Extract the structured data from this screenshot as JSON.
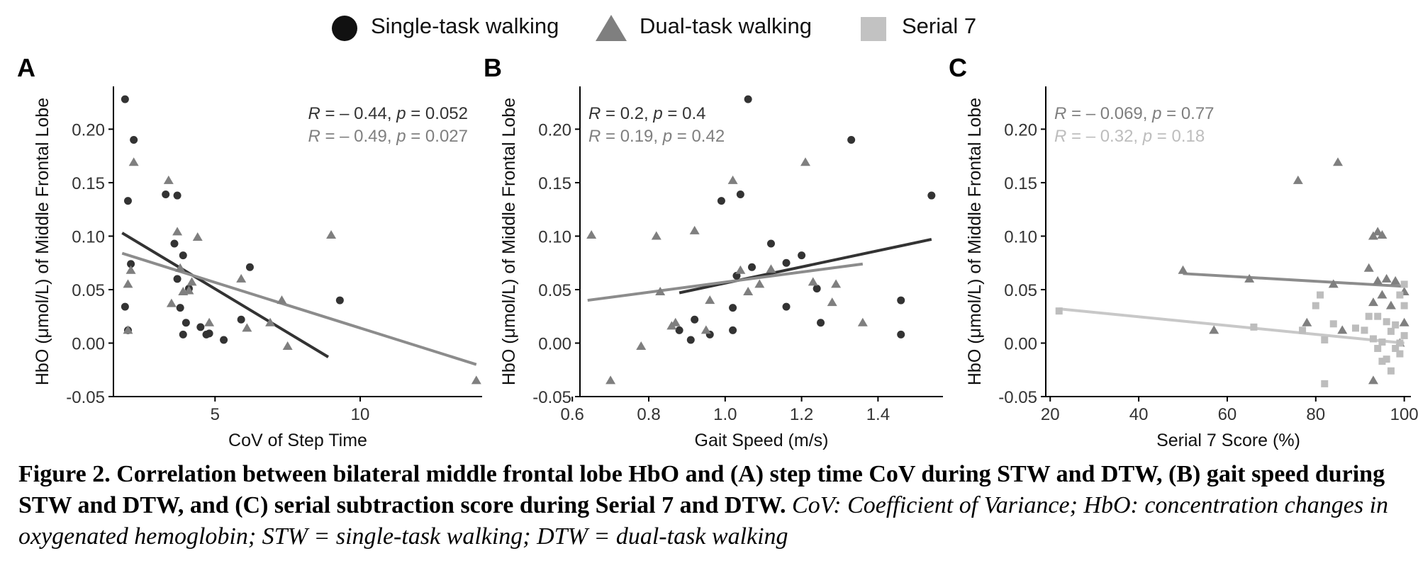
{
  "legend": {
    "single": "Single-task walking",
    "dual": "Dual-task walking",
    "serial": "Serial 7"
  },
  "colors": {
    "single": "#333333",
    "dual": "#7f7f7f",
    "serial": "#bdbdbd",
    "line_single": "#333333",
    "line_dual": "#8c8c8c",
    "line_serial": "#c8c8c8"
  },
  "caption": {
    "bold": "Figure 2. Correlation between bilateral middle frontal lobe HbO and (A) step time CoV during STW and DTW, (B) gait speed during STW and DTW, and (C) serial subtraction score during Serial 7 and DTW.",
    "italic": "CoV: Coefficient of Variance; HbO: concentration changes in oxygenated hemoglobin; STW = single-task walking; DTW = dual-task walking"
  },
  "chart_data": [
    {
      "panel": "A",
      "type": "scatter",
      "xlabel": "CoV of Step Time",
      "ylabel": "HbO (μmol/L) of Middle Frontal Lobe",
      "xlim": [
        1.5,
        14.2
      ],
      "ylim": [
        -0.05,
        0.24
      ],
      "xticks": [
        5,
        10
      ],
      "yticks": [
        -0.05,
        0.0,
        0.05,
        0.1,
        0.15,
        0.2
      ],
      "stats": [
        {
          "series": "single",
          "r_label": "R",
          "r_text": " = – 0.44, ",
          "p_label": "p",
          "p_text": " = 0.052"
        },
        {
          "series": "dual",
          "r_label": "R",
          "r_text": " = – 0.49, ",
          "p_label": "p",
          "p_text": " = 0.027"
        }
      ],
      "series": [
        {
          "name": "single",
          "marker": "circle",
          "points": [
            [
              1.9,
              0.228
            ],
            [
              2.0,
              0.133
            ],
            [
              2.2,
              0.19
            ],
            [
              2.1,
              0.074
            ],
            [
              1.9,
              0.034
            ],
            [
              2.0,
              0.012
            ],
            [
              3.3,
              0.139
            ],
            [
              3.7,
              0.138
            ],
            [
              3.6,
              0.093
            ],
            [
              3.9,
              0.082
            ],
            [
              3.7,
              0.06
            ],
            [
              4.1,
              0.051
            ],
            [
              3.8,
              0.033
            ],
            [
              4.0,
              0.019
            ],
            [
              3.9,
              0.008
            ],
            [
              4.5,
              0.015
            ],
            [
              4.8,
              0.009
            ],
            [
              4.7,
              0.008
            ],
            [
              5.3,
              0.003
            ],
            [
              5.9,
              0.022
            ],
            [
              6.2,
              0.071
            ],
            [
              9.3,
              0.04
            ]
          ],
          "fit": {
            "x": [
              1.8,
              8.9
            ],
            "y": [
              0.103,
              -0.013
            ]
          }
        },
        {
          "name": "dual",
          "marker": "triangle",
          "points": [
            [
              2.2,
              0.169
            ],
            [
              2.0,
              0.055
            ],
            [
              2.1,
              0.068
            ],
            [
              2.0,
              0.012
            ],
            [
              3.4,
              0.152
            ],
            [
              3.7,
              0.104
            ],
            [
              4.4,
              0.099
            ],
            [
              3.8,
              0.07
            ],
            [
              4.2,
              0.057
            ],
            [
              3.9,
              0.048
            ],
            [
              4.1,
              0.049
            ],
            [
              3.5,
              0.037
            ],
            [
              4.8,
              0.019
            ],
            [
              5.9,
              0.06
            ],
            [
              6.1,
              0.014
            ],
            [
              6.9,
              0.019
            ],
            [
              7.3,
              0.04
            ],
            [
              7.5,
              -0.003
            ],
            [
              9.0,
              0.101
            ],
            [
              14.0,
              -0.035
            ]
          ],
          "fit": {
            "x": [
              1.8,
              14.0
            ],
            "y": [
              0.084,
              -0.02
            ]
          }
        }
      ]
    },
    {
      "panel": "B",
      "type": "scatter",
      "xlabel": "Gait Speed (m/s)",
      "ylabel": "HbO (μmol/L) of Middle Frontal Lobe",
      "xlim": [
        0.62,
        1.57
      ],
      "ylim": [
        -0.05,
        0.24
      ],
      "xticks": [
        0.6,
        0.8,
        1.0,
        1.2,
        1.4
      ],
      "yticks": [
        -0.05,
        0.0,
        0.05,
        0.1,
        0.15,
        0.2
      ],
      "stats": [
        {
          "series": "single",
          "r_label": "R",
          "r_text": " = 0.2, ",
          "p_label": "p",
          "p_text": " = 0.4"
        },
        {
          "series": "dual",
          "r_label": "R",
          "r_text": " = 0.19, ",
          "p_label": "p",
          "p_text": " = 0.42"
        }
      ],
      "series": [
        {
          "name": "single",
          "marker": "circle",
          "points": [
            [
              1.06,
              0.228
            ],
            [
              1.33,
              0.19
            ],
            [
              0.99,
              0.133
            ],
            [
              1.04,
              0.139
            ],
            [
              1.54,
              0.138
            ],
            [
              1.12,
              0.093
            ],
            [
              1.2,
              0.082
            ],
            [
              1.16,
              0.075
            ],
            [
              1.07,
              0.071
            ],
            [
              1.03,
              0.063
            ],
            [
              1.24,
              0.051
            ],
            [
              1.46,
              0.04
            ],
            [
              1.02,
              0.033
            ],
            [
              1.16,
              0.034
            ],
            [
              0.92,
              0.022
            ],
            [
              1.25,
              0.019
            ],
            [
              0.88,
              0.012
            ],
            [
              0.96,
              0.008
            ],
            [
              0.91,
              0.003
            ],
            [
              1.02,
              0.012
            ],
            [
              1.46,
              0.008
            ]
          ],
          "fit": {
            "x": [
              0.88,
              1.54
            ],
            "y": [
              0.047,
              0.097
            ]
          }
        },
        {
          "name": "dual",
          "marker": "triangle",
          "points": [
            [
              0.65,
              0.101
            ],
            [
              0.82,
              0.1
            ],
            [
              0.92,
              0.105
            ],
            [
              1.02,
              0.152
            ],
            [
              1.21,
              0.169
            ],
            [
              1.04,
              0.068
            ],
            [
              1.12,
              0.069
            ],
            [
              1.09,
              0.055
            ],
            [
              1.23,
              0.057
            ],
            [
              0.83,
              0.048
            ],
            [
              1.06,
              0.048
            ],
            [
              0.96,
              0.04
            ],
            [
              0.87,
              0.019
            ],
            [
              0.86,
              0.016
            ],
            [
              0.95,
              0.012
            ],
            [
              0.78,
              -0.003
            ],
            [
              0.7,
              -0.035
            ],
            [
              1.28,
              0.038
            ],
            [
              1.29,
              0.055
            ],
            [
              1.36,
              0.019
            ]
          ],
          "fit": {
            "x": [
              0.64,
              1.36
            ],
            "y": [
              0.04,
              0.074
            ]
          }
        }
      ]
    },
    {
      "panel": "C",
      "type": "scatter",
      "xlabel": "Serial 7 Score (%)",
      "ylabel": "HbO (μmol/L) of Middle Frontal Lobe",
      "xlim": [
        19,
        101.5
      ],
      "ylim": [
        -0.05,
        0.24
      ],
      "xticks": [
        20,
        40,
        60,
        80,
        100
      ],
      "yticks": [
        -0.05,
        0.0,
        0.05,
        0.1,
        0.15,
        0.2
      ],
      "stats": [
        {
          "series": "dual",
          "r_label": "R",
          "r_text": " = – 0.069, ",
          "p_label": "p",
          "p_text": " = 0.77"
        },
        {
          "series": "serial",
          "r_label": "R",
          "r_text": " = – 0.32, ",
          "p_label": "p",
          "p_text": " = 0.18"
        }
      ],
      "series": [
        {
          "name": "dual",
          "marker": "triangle",
          "points": [
            [
              50,
              0.068
            ],
            [
              65,
              0.06
            ],
            [
              57,
              0.012
            ],
            [
              76,
              0.152
            ],
            [
              85,
              0.169
            ],
            [
              78,
              0.019
            ],
            [
              84,
              0.055
            ],
            [
              86,
              0.012
            ],
            [
              93,
              0.1
            ],
            [
              94,
              0.104
            ],
            [
              95,
              0.101
            ],
            [
              92,
              0.07
            ],
            [
              94,
              0.058
            ],
            [
              96,
              0.06
            ],
            [
              98,
              0.058
            ],
            [
              93,
              0.038
            ],
            [
              95,
              0.045
            ],
            [
              100,
              0.048
            ],
            [
              100,
              0.019
            ],
            [
              93,
              -0.035
            ],
            [
              97,
              0.035
            ],
            [
              99,
              0.0
            ]
          ],
          "fit": {
            "x": [
              50,
              100
            ],
            "y": [
              0.065,
              0.053
            ]
          }
        },
        {
          "name": "serial",
          "marker": "square",
          "points": [
            [
              22,
              0.03
            ],
            [
              66,
              0.015
            ],
            [
              81,
              0.045
            ],
            [
              80,
              0.035
            ],
            [
              77,
              0.012
            ],
            [
              82,
              0.003
            ],
            [
              84,
              0.018
            ],
            [
              82,
              -0.038
            ],
            [
              89,
              0.014
            ],
            [
              91,
              0.012
            ],
            [
              92,
              0.025
            ],
            [
              94,
              0.025
            ],
            [
              97,
              0.011
            ],
            [
              96,
              0.02
            ],
            [
              98,
              0.017
            ],
            [
              100,
              0.007
            ],
            [
              100,
              0.055
            ],
            [
              99,
              0.045
            ],
            [
              100,
              0.035
            ],
            [
              94,
              -0.005
            ],
            [
              95,
              -0.017
            ],
            [
              96,
              -0.015
            ],
            [
              98,
              -0.005
            ],
            [
              97,
              -0.026
            ],
            [
              99,
              -0.01
            ],
            [
              93,
              0.004
            ],
            [
              95,
              0.001
            ],
            [
              99,
              0.0
            ]
          ],
          "fit": {
            "x": [
              22,
              100
            ],
            "y": [
              0.032,
              0.0
            ]
          }
        }
      ]
    }
  ]
}
